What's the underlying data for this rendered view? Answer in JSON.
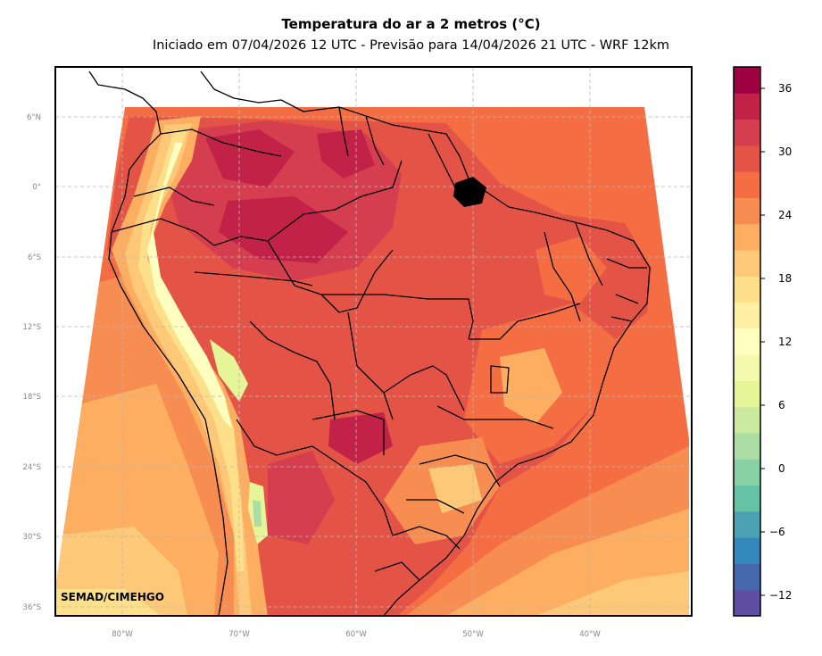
{
  "title": "Temperatura do ar a 2 metros (°C)",
  "subtitle": "Iniciado em 07/04/2026 12 UTC - Previsão para 14/04/2026 21 UTC - WRF 12km",
  "credit": "SEMAD/CIMEHGO",
  "lat_ticks": [
    "6°N",
    "0°",
    "6°S",
    "12°S",
    "18°S",
    "24°S",
    "30°S",
    "36°S"
  ],
  "lon_ticks": [
    "80°W",
    "70°W",
    "60°W",
    "50°W",
    "40°W"
  ],
  "colorbar": {
    "ticks": [
      "36",
      "30",
      "24",
      "18",
      "12",
      "6",
      "0",
      "−6",
      "−12"
    ],
    "colors": [
      "#5e4fa2",
      "#4868ad",
      "#3288bd",
      "#4ba0b1",
      "#66c2a5",
      "#88d1a4",
      "#abdda4",
      "#c9e99e",
      "#e6f598",
      "#f4faad",
      "#ffffbf",
      "#fff0a6",
      "#fee08b",
      "#fdc877",
      "#fdae61",
      "#f88d52",
      "#f46d43",
      "#e45446",
      "#d53e4f",
      "#c22248",
      "#9e0142"
    ]
  },
  "colors": {
    "ocean_warm": "#f46d43",
    "ocean_mild": "#f88d52",
    "ocean_cool": "#fdae61",
    "ocean_cold": "#fdc877",
    "land_hot": "#d53e4f",
    "land_very_hot": "#c22248",
    "andes_cold": "#ffffbf"
  }
}
